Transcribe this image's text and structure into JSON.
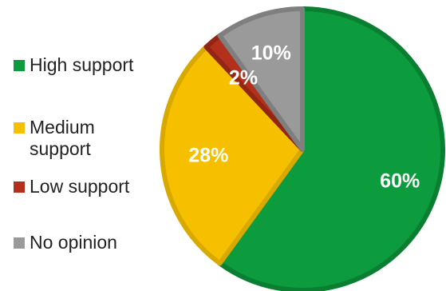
{
  "chart_data": {
    "type": "pie",
    "title": "",
    "categories": [
      "High support",
      "Medium support",
      "Low support",
      "No opinion"
    ],
    "values": [
      60,
      28,
      2,
      10
    ],
    "labels": [
      "60%",
      "28%",
      "2%",
      "10%"
    ],
    "colors": [
      "#0c9b3d",
      "#f6c000",
      "#b3311c",
      "#9a9a9a"
    ],
    "border_colors": [
      "#0a7f32",
      "#d8a900",
      "#922612",
      "#7f7f7f"
    ],
    "start_angle_deg": 0,
    "direction": "clockwise",
    "legend": {
      "position": "left",
      "items": [
        {
          "label": "High support",
          "color": "#0c9b3d"
        },
        {
          "label": "Medium\nsupport",
          "color": "#f6c000"
        },
        {
          "label": "Low support",
          "color": "#b3311c"
        },
        {
          "label": "No opinion",
          "color": "#9a9a9a"
        }
      ]
    }
  }
}
